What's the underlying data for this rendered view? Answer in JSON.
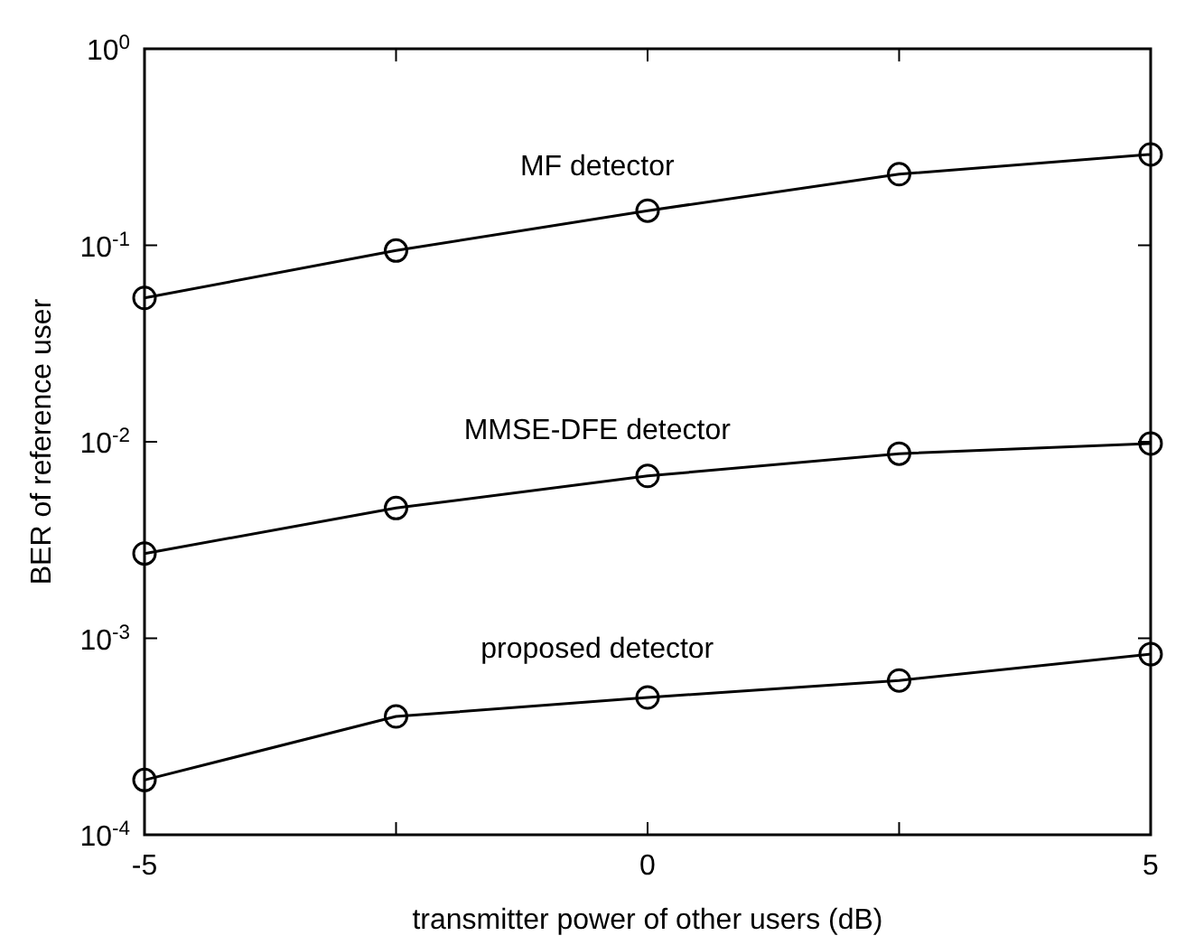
{
  "chart_data": {
    "type": "line",
    "xlabel": "transmitter power of other users (dB)",
    "ylabel": "BER of reference user",
    "x": [
      -5,
      -2.5,
      0,
      2.5,
      5
    ],
    "xlim": [
      -5,
      5
    ],
    "xticks": [
      -5,
      {
        "value": -2.5,
        "label": null
      },
      0,
      {
        "value": 2.5,
        "label": null
      },
      5
    ],
    "ylim": [
      0.0001,
      1
    ],
    "yticks": [
      {
        "value": 1,
        "label": "10$^{0}$"
      },
      {
        "value": 0.1,
        "label": "10$^{-1}$"
      },
      {
        "value": 0.01,
        "label": "10$^{-2}$"
      },
      {
        "value": 0.001,
        "label": "10$^{-3}$"
      },
      {
        "value": 0.0001,
        "label": "10$^{-4}$"
      }
    ],
    "log": "y",
    "marker": "circle",
    "line_style": "solid",
    "series": [
      {
        "name": "MF detector",
        "color": "#000000",
        "values": [
          0.054,
          0.094,
          0.15,
          0.23,
          0.29
        ]
      },
      {
        "name": "MMSE-DFE detector",
        "color": "#000000",
        "values": [
          0.0027,
          0.0046,
          0.0067,
          0.0087,
          0.0098
        ]
      },
      {
        "name": "proposed detector",
        "color": "#000000",
        "values": [
          0.00019,
          0.0004,
          0.0005,
          0.00061,
          0.00083
        ]
      }
    ]
  }
}
